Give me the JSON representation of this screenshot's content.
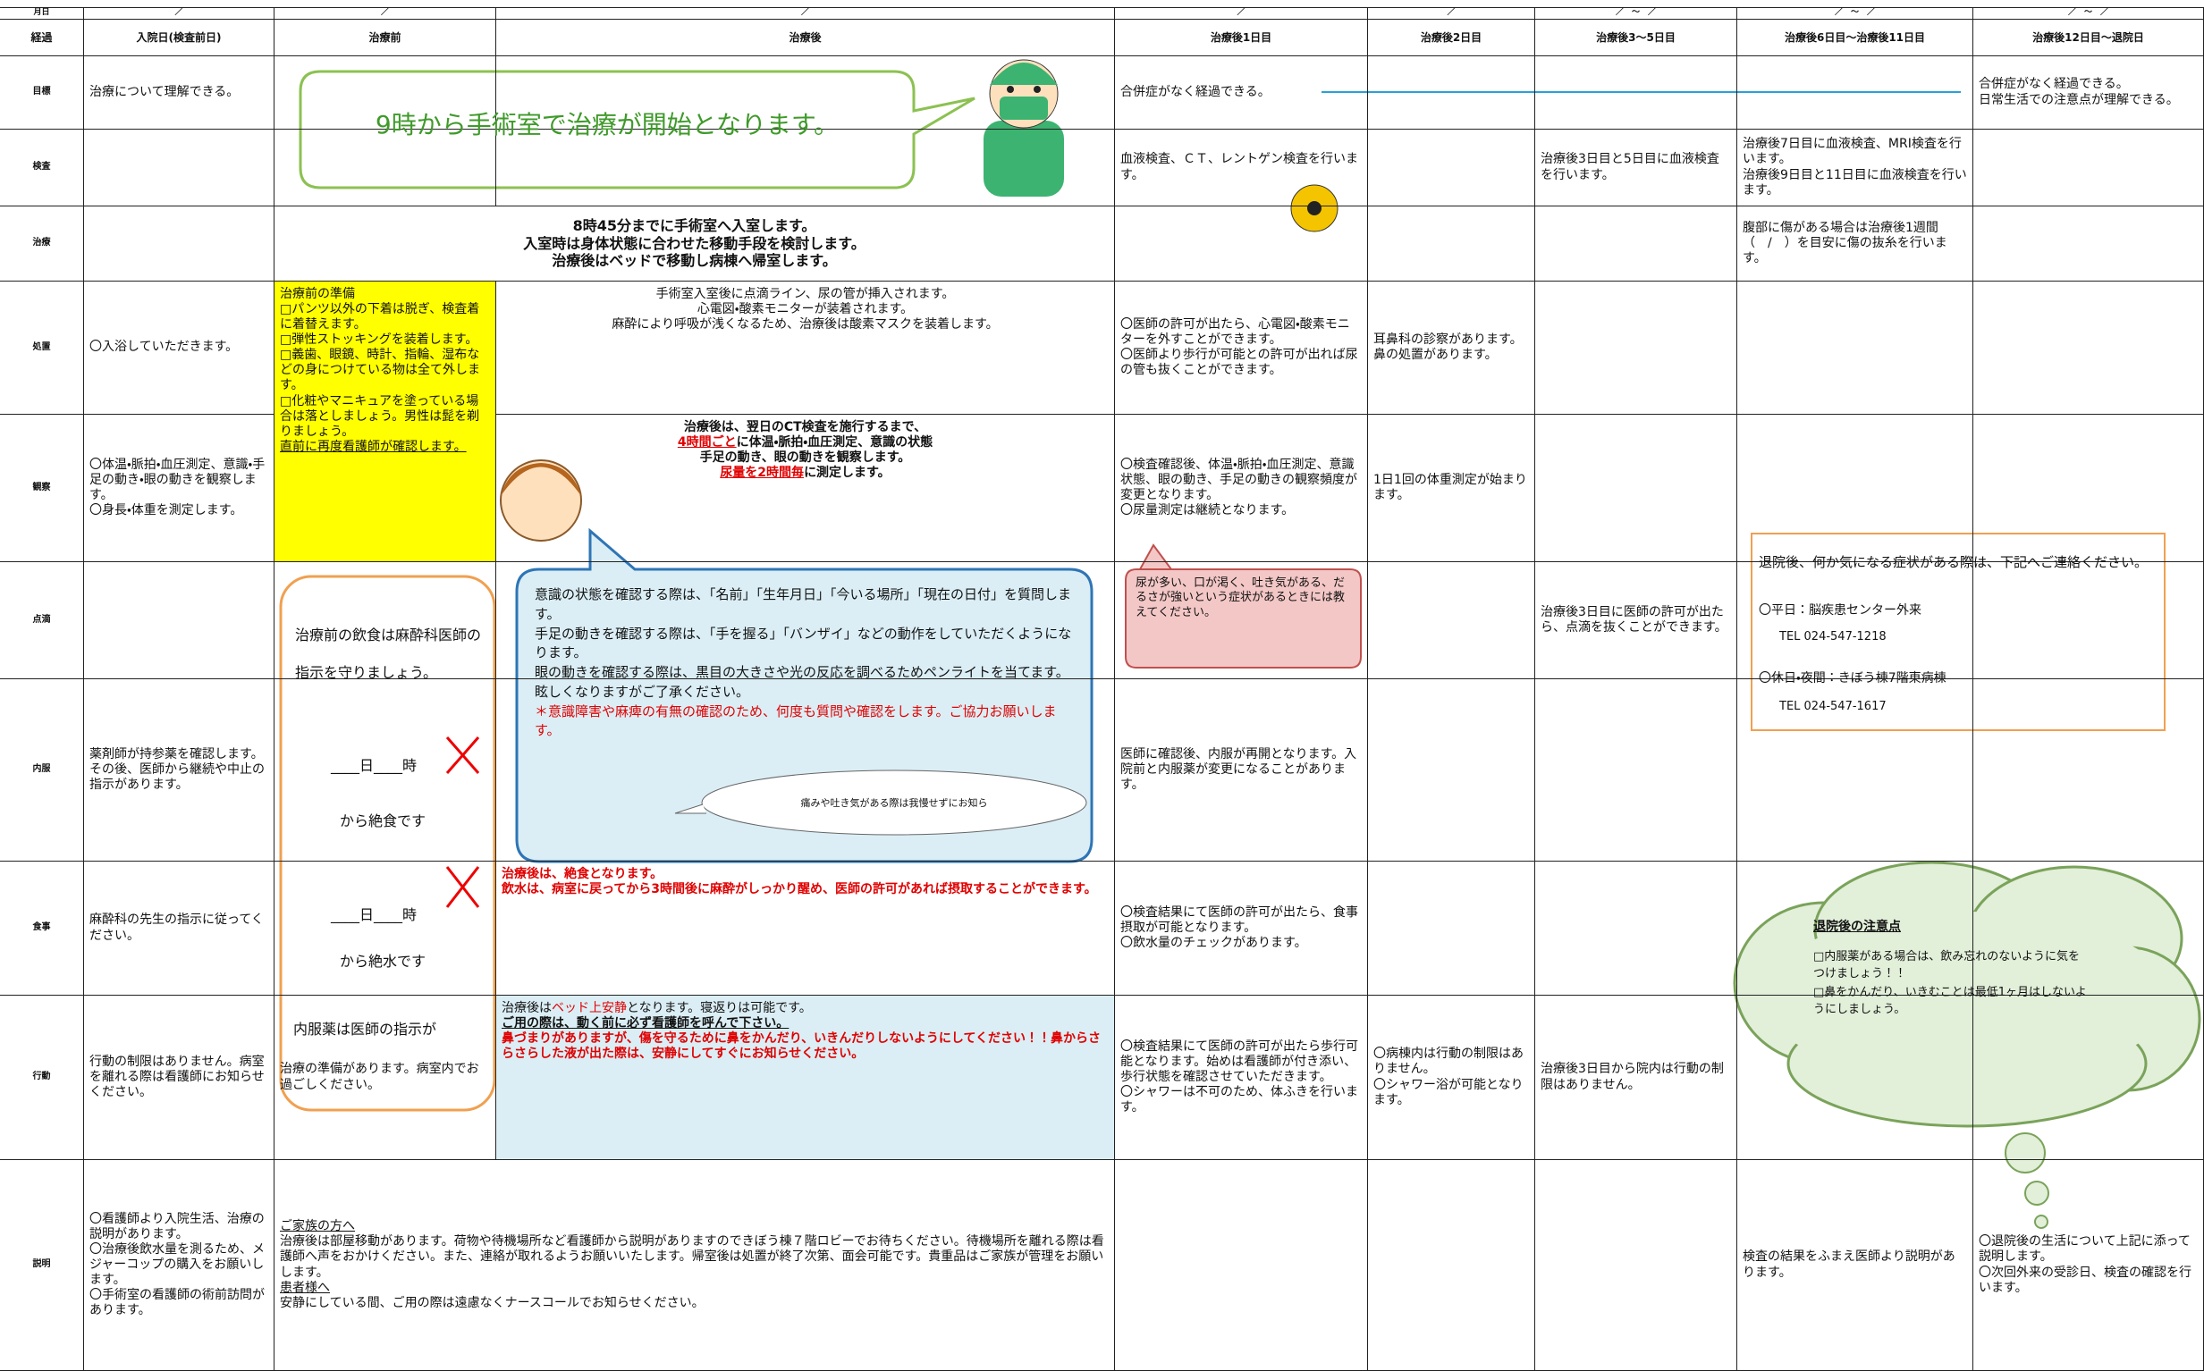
{
  "date_row": [
    "月日",
    "／",
    "／",
    "／",
    "／",
    "／",
    "／　～　／",
    "／　～　／",
    "／　～　／"
  ],
  "headers": [
    "経過",
    "入院日(検査前日)",
    "治療前",
    "治療後",
    "治療後1日目",
    "治療後2日目",
    "治療後3～5日目",
    "治療後6日目～治療後11日目",
    "治療後12日目～退院日"
  ],
  "rows": [
    {
      "label": "目標",
      "cells": [
        "治療について理解できる。",
        null,
        null,
        "合併症がなく経過できる。",
        null,
        null,
        null,
        "合併症がなく経過できる。\n日常生活での注意点が理解できる。"
      ]
    },
    {
      "label": "検査",
      "cells": [
        null,
        null,
        null,
        "血液検査、ＣＴ、レントゲン検査を行います。",
        null,
        "治療後3日目と5日目に血液検査を行います。",
        "治療後7日目に血液検査、MRI検査を行います。\n治療後9日目と11日目に血液検査を行います。",
        null
      ]
    },
    {
      "label": "治療",
      "cells": [
        null,
        [
          "8時45分までに手術室へ入室します。",
          "入室時は身体状態に合わせた移動手段を検討します。",
          "治療後はベッドで移動し病棟へ帰室します。"
        ],
        null,
        null,
        null,
        null,
        "腹部に傷がある場合は治療後1週間（　/　）を目安に傷の抜糸を行います。",
        null
      ]
    },
    {
      "label": "処置",
      "cells": [
        "〇入浴していただきます。",
        [
          "治療前の準備",
          "□パンツ以外の下着は脱ぎ、検査着に着替えます。",
          "□弾性ストッキングを装着します。",
          "□義歯、眼鏡、時計、指輪、湿布などの身につけている物は全て外します。",
          "□化粧やマニキュアを塗っている場合は落としましょう。男性は髭を剃りましょう。",
          "直前に再度看護師が確認します。"
        ],
        [
          "手術室入室後に点滴ライン、尿の管が挿入されます。",
          "心電図・酸素モニターが装着されます。",
          "麻酔により呼吸が浅くなるため、治療後は酸素マスクを装着します。"
        ],
        "〇医師の許可が出たら、心電図・酸素モニターを外すことができます。\n〇医師より歩行が可能との許可が出れば尿の管も抜くことができます。",
        "耳鼻科の診察があります。鼻の処置があります。",
        null,
        null,
        null
      ]
    },
    {
      "label": "観察",
      "cells": [
        "〇体温・脈拍・血圧測定、意識・手足の動き・眼の動きを観察します。\n〇身長・体重を測定します。",
        null,
        [
          "治療後は、翌日のCT検査を施行するまで、",
          [
            "4時間ごと",
            "に体温・脈拍・血圧測定、意識の状態"
          ],
          "手足の動き、眼の動きを観察します。",
          [
            "尿量を2時間毎",
            "に測定します。"
          ]
        ],
        "〇検査確認後、体温・脈拍・血圧測定、意識状態、眼の動き、手足の動きの観察頻度が変更となります。\n〇尿量測定は継続となります。",
        "1日1回の体重測定が始まります。",
        null,
        null,
        null
      ]
    },
    {
      "label": "点滴",
      "cells": [
        null,
        null,
        null,
        null,
        null,
        "治療後3日目に医師の許可が出たら、点滴を抜くことができます。",
        null,
        null
      ]
    },
    {
      "label": "内服",
      "cells": [
        "薬剤師が持参薬を確認します。その後、医師から継続や中止の指示があります。",
        null,
        null,
        "医師に確認後、内服が再開となります。入院前と内服薬が変更になることがあります。",
        null,
        null,
        null,
        null
      ]
    },
    {
      "label": "食事",
      "cells": [
        "麻酔科の先生の指示に従ってください。",
        null,
        [
          "治療後は、絶食となります。",
          "飲水は、病室に戻ってから3時間後に麻酔がしっかり醒め、医師の許可があれば摂取することができます。"
        ],
        "〇検査結果にて医師の許可が出たら、食事摂取が可能となります。\n〇飲水量のチェックがあります。",
        null,
        null,
        null,
        null
      ]
    },
    {
      "label": "行動",
      "cells": [
        "行動の制限はありません。病室を離れる際は看護師にお知らせください。",
        "治療の準備があります。病室内でお過ごしください。",
        [
          [
            "治療後は",
            "ベッド上安静",
            "となります。寝返りは可能です。"
          ],
          "ご用の際は、動く前に必ず看護師を呼んで下さい。",
          "鼻づまりがありますが、傷を守るために鼻をかんだり、いきんだりしないようにしてください！！鼻からさらさらした液が出た際は、安静にしてすぐにお知らせください。"
        ],
        "〇検査結果にて医師の許可が出たら歩行可能となります。始めは看護師が付き添い、歩行状態を確認させていただきます。\n〇シャワーは不可のため、体ふきを行います。",
        "〇病棟内は行動の制限はありません。\n〇シャワー浴が可能となります。",
        "治療後3日目から院内は行動の制限はありません。",
        null,
        null
      ]
    },
    {
      "label": "説明",
      "cells": [
        "〇看護師より入院生活、治療の説明があります。\n〇治療後飲水量を測るため、メジャーコップの購入をお願いします。\n〇手術室の看護師の術前訪問があります。",
        [
          "ご家族の方へ",
          "治療後は部屋移動があります。荷物や待機場所など看護師から説明がありますのできぼう棟７階ロビーでお待ちください。待機場所を離れる際は看護師へ声をおかけください。また、連絡が取れるようお願いいたします。帰室後は処置が終了次第、面会可能です。貴重品はご家族が管理をお願いします。",
          "患者様へ",
          "安静にしている間、ご用の際は遠慮なくナースコールでお知らせください。"
        ],
        null,
        null,
        null,
        null,
        "検査の結果をふまえ医師より説明があります。",
        "〇退院後の生活について上記に添って説明します。\n〇次回外来の受診日、検査の確認を行います。"
      ]
    }
  ],
  "notes": {
    "start_bubble": "9時から手術室で治療が開始となります。",
    "fasting": [
      "治療前の飲食は麻酔科医師の指示を守りましょう。",
      "____日____時",
      "から絶食です",
      "____日____時",
      "から絶水です",
      "内服薬は医師の指示が"
    ],
    "check_callout": [
      "意識の状態を確認する際は、「名前」「生年月日」「今いる場所」「現在の日付」を質問します。",
      "手足の動きを確認する際は、「手を握る」「バンザイ」などの動作をしていただくようになります。",
      "眼の動きを確認する際は、黒目の大きさや光の反応を調べるためペンライトを当てます。眩しくなりますがご了承ください。",
      "＊意識障害や麻痺の有無の確認のため、何度も質問や確認をします。ご協力お願いします。"
    ],
    "pain_note": "痛みや吐き気がある際は我慢せずにお知ら",
    "symptom_callout": "尿が多い、口が渇く、吐き気がある、だるさが強いという症状があるときには教えてください。",
    "contact": [
      "退院後、何か気になる症状がある際は、下記へご連絡ください。",
      "〇平日：脳疾患センター外来",
      "TEL 024-547-1218",
      "〇休日・夜間：きぼう棟7階東病棟",
      "TEL 024-547-1617"
    ],
    "after_discharge": [
      "退院後の注意点",
      "□内服薬がある場合は、飲み忘れのないように気をつけましょう！！",
      "□鼻をかんだり、いきむことは最低1ヶ月はしないようにしましょう。"
    ]
  }
}
